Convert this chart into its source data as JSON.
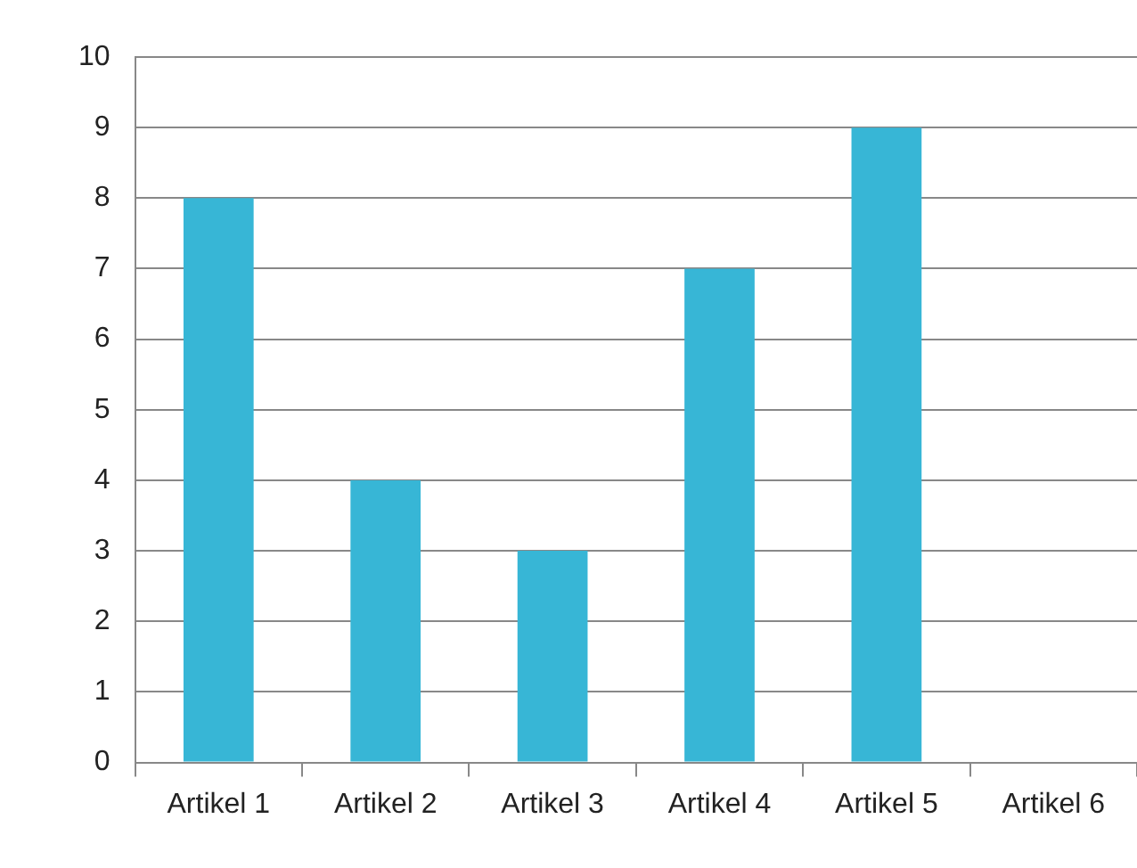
{
  "chart_data": {
    "type": "bar",
    "categories": [
      "Artikel 1",
      "Artikel 2",
      "Artikel 3",
      "Artikel 4",
      "Artikel 5",
      "Artikel 6"
    ],
    "values": [
      8,
      4,
      3,
      7,
      9,
      null
    ],
    "color": "#37b6d6",
    "ylim": [
      0,
      10
    ],
    "yticks": [
      0,
      1,
      2,
      3,
      4,
      5,
      6,
      7,
      8,
      9,
      10
    ],
    "grid": "y",
    "legend": false
  }
}
